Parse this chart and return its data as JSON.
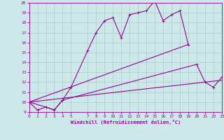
{
  "xlabel": "Windchill (Refroidissement éolien,°C)",
  "bg_color": "#cce8e8",
  "line_color": "#990099",
  "grid_color": "#aacccc",
  "xlim": [
    0,
    23
  ],
  "ylim": [
    9,
    20
  ],
  "ytick_vals": [
    9,
    10,
    11,
    12,
    13,
    14,
    15,
    16,
    17,
    18,
    19,
    20
  ],
  "xtick_vals": [
    0,
    1,
    2,
    3,
    4,
    5,
    7,
    8,
    9,
    10,
    11,
    12,
    13,
    14,
    15,
    16,
    17,
    18,
    19,
    20,
    21,
    22,
    23
  ],
  "line1_x": [
    0,
    1,
    2,
    3,
    4,
    5,
    7,
    8,
    9,
    10,
    11,
    12,
    13,
    14,
    15,
    16,
    17,
    18,
    19
  ],
  "line1_y": [
    10.0,
    9.2,
    9.5,
    9.2,
    10.2,
    11.5,
    15.2,
    17.0,
    18.2,
    18.5,
    16.5,
    18.8,
    19.0,
    19.2,
    20.2,
    18.2,
    18.8,
    19.2,
    15.8
  ],
  "line2_x": [
    0,
    2,
    3,
    4,
    20,
    21,
    22,
    23
  ],
  "line2_y": [
    10.0,
    9.5,
    9.2,
    10.2,
    13.8,
    12.0,
    11.5,
    12.5
  ],
  "line3_x": [
    0,
    23
  ],
  "line3_y": [
    10.0,
    12.2
  ],
  "line4_x": [
    0,
    19
  ],
  "line4_y": [
    10.0,
    15.8
  ]
}
